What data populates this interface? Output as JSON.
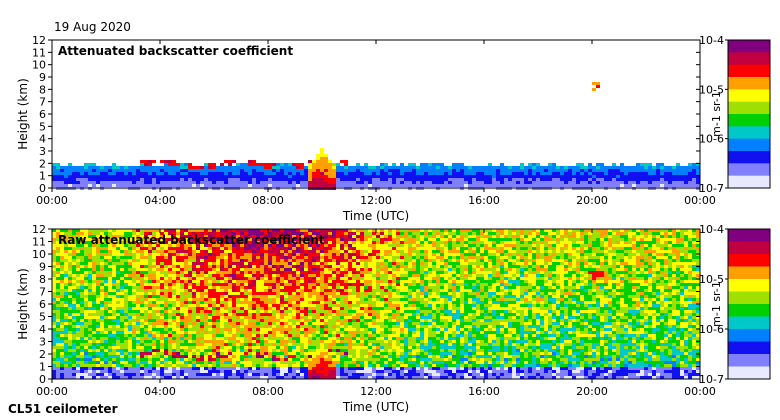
{
  "header": {
    "date": "19 Aug 2020"
  },
  "footer": {
    "instrument": "CL51 ceilometer"
  },
  "colors": {
    "colormap": [
      "#e8e8ff",
      "#8080ff",
      "#1010f0",
      "#0080ff",
      "#00c8c8",
      "#00d000",
      "#a0e000",
      "#ffff00",
      "#ffa000",
      "#ff0000",
      "#c00040",
      "#800080"
    ]
  },
  "chart_data": [
    {
      "type": "heatmap",
      "title": "Attenuated backscatter coefficient",
      "xlabel": "Time (UTC)",
      "ylabel": "Height (km)",
      "x_ticks": [
        "00:00",
        "04:00",
        "08:00",
        "12:00",
        "16:00",
        "20:00",
        "00:00"
      ],
      "y_ticks": [
        "0",
        "1",
        "2",
        "3",
        "4",
        "5",
        "6",
        "7",
        "8",
        "9",
        "10",
        "11",
        "12"
      ],
      "xlim_hours": [
        0,
        24
      ],
      "ylim_km": [
        0,
        12
      ],
      "colorbar": {
        "label": "m-1 sr-1",
        "ticks": [
          "10-7",
          "10-6",
          "10-5",
          "10-4"
        ],
        "range_log10": [
          -7,
          -4
        ]
      },
      "features": [
        {
          "name": "boundary layer",
          "t_start": 0,
          "t_end": 24,
          "h_top_km": 1.9,
          "level": 0.35
        },
        {
          "name": "cloud layer",
          "t_start": 3.2,
          "t_end": 11.0,
          "h_km": 1.9,
          "level": 0.75
        },
        {
          "name": "precipitation",
          "t_start": 9.5,
          "t_end": 10.5,
          "h_top_km": 3.2,
          "level": 0.85
        },
        {
          "name": "high cloud",
          "t_start": 20.0,
          "t_end": 20.3,
          "h_km": 8.3,
          "level": 0.7
        }
      ]
    },
    {
      "type": "heatmap",
      "title": "Raw attenuated backscatter coefficient",
      "xlabel": "Time (UTC)",
      "ylabel": "Height (km)",
      "x_ticks": [
        "00:00",
        "04:00",
        "08:00",
        "12:00",
        "16:00",
        "20:00",
        "00:00"
      ],
      "y_ticks": [
        "0",
        "1",
        "2",
        "3",
        "4",
        "5",
        "6",
        "7",
        "8",
        "9",
        "10",
        "11",
        "12"
      ],
      "xlim_hours": [
        0,
        24
      ],
      "ylim_km": [
        0,
        12
      ],
      "colorbar": {
        "label": "m-1 sr-1",
        "ticks": [
          "10-7",
          "10-6",
          "10-5",
          "10-4"
        ],
        "range_log10": [
          -7,
          -4
        ]
      },
      "features": [
        {
          "name": "daytime noise",
          "t_start": 3.0,
          "t_end": 13.0,
          "level": 0.75
        },
        {
          "name": "cloud layer",
          "t_start": 3.2,
          "t_end": 11.0,
          "h_km": 1.9,
          "level": 0.8
        },
        {
          "name": "precipitation",
          "t_start": 9.5,
          "t_end": 10.5,
          "h_top_km": 3.0,
          "level": 0.85
        },
        {
          "name": "high cloud",
          "t_start": 19.8,
          "t_end": 20.6,
          "h_km": 8.3,
          "level": 0.7
        }
      ]
    }
  ]
}
